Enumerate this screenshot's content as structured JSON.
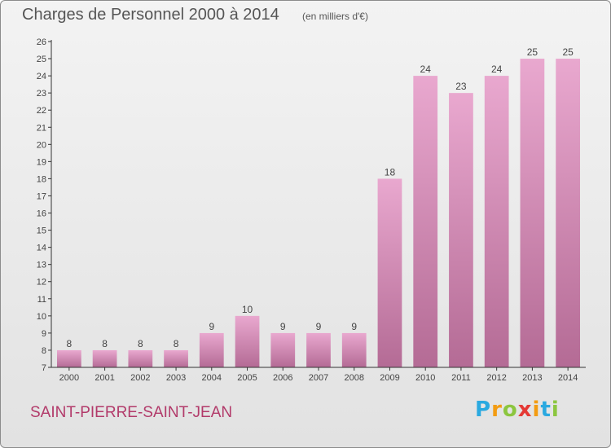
{
  "chart_data": {
    "type": "bar",
    "title": "Charges de Personnel 2000 à 2014",
    "unit": "(en milliers d'€)",
    "subject": "SAINT-PIERRE-SAINT-JEAN",
    "categories": [
      "2000",
      "2001",
      "2002",
      "2003",
      "2004",
      "2005",
      "2006",
      "2007",
      "2008",
      "2009",
      "2010",
      "2011",
      "2012",
      "2013",
      "2014"
    ],
    "values": [
      8,
      8,
      8,
      8,
      9,
      10,
      9,
      9,
      9,
      18,
      24,
      23,
      24,
      25,
      25
    ],
    "ylim": [
      7,
      26
    ],
    "yticks": [
      7,
      8,
      9,
      10,
      11,
      12,
      13,
      14,
      15,
      16,
      17,
      18,
      19,
      20,
      21,
      22,
      23,
      24,
      25,
      26
    ],
    "xlabel": "",
    "ylabel": "",
    "grid": false,
    "bar_color": "#d98ab5"
  },
  "branding": {
    "logo_letters": [
      "P",
      "r",
      "o",
      "x",
      "i",
      "t",
      "i"
    ],
    "logo_colors": [
      "#2aa9e0",
      "#f39c12",
      "#8cc63f",
      "#e53935",
      "#f39c12",
      "#2aa9e0",
      "#8cc63f"
    ]
  }
}
